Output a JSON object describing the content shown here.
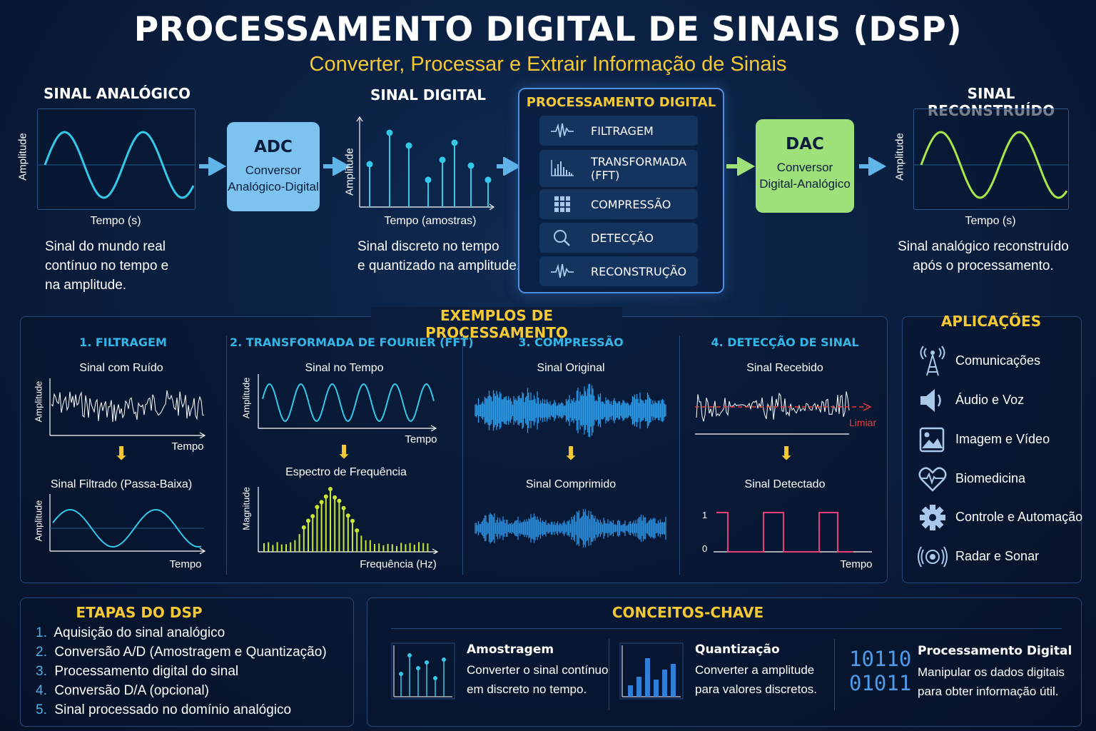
{
  "title": "PROCESSAMENTO DIGITAL DE SINAIS (DSP)",
  "subtitle": "Converter, Processar e Extrair Informação de Sinais",
  "colors": {
    "background": "#0a1d3c",
    "accent_yellow": "#f5c935",
    "accent_cyan": "#35b6e8",
    "adc_box": "#7cc3ef",
    "dac_box": "#9ee07a",
    "reconstructed_wave": "#a7e84a",
    "threshold_red": "#e83d3d",
    "detect_pink": "#e8407a"
  },
  "pipeline": {
    "analog": {
      "header": "SINAL ANALÓGICO",
      "ylabel": "Amplitude",
      "xlabel": "Tempo (s)",
      "description": [
        "Sinal do mundo real",
        "contínuo no tempo e",
        "na amplitude."
      ]
    },
    "adc": {
      "abbr": "ADC",
      "line1": "Conversor",
      "line2": "Analógico-Digital"
    },
    "digital": {
      "header": "SINAL DIGITAL",
      "ylabel": "Amplitude",
      "xlabel": "Tempo (amostras)",
      "description": [
        "Sinal discreto no tempo",
        "e quantizado na amplitude."
      ]
    },
    "processing": {
      "header": "PROCESSAMENTO DIGITAL",
      "items": [
        {
          "label": "FILTRAGEM",
          "icon": "waveform-icon"
        },
        {
          "label": "TRANSFORMADA\n(FFT)",
          "icon": "spectrum-bars-icon"
        },
        {
          "label": "COMPRESSÃO",
          "icon": "grid-icon"
        },
        {
          "label": "DETECÇÃO",
          "icon": "magnifier-icon"
        },
        {
          "label": "RECONSTRUÇÃO",
          "icon": "waveform-icon"
        }
      ]
    },
    "dac": {
      "abbr": "DAC",
      "line1": "Conversor",
      "line2": "Digital-Analógico"
    },
    "reconstructed": {
      "header": "SINAL RECONSTRUÍDO",
      "ylabel": "Amplitude",
      "xlabel": "Tempo (s)",
      "description": [
        "Sinal analógico reconstruído",
        "após o processamento."
      ]
    }
  },
  "examples": {
    "title": "EXEMPLOS DE PROCESSAMENTO",
    "filtering": {
      "title": "1. FILTRAGEM",
      "top_label": "Sinal com Ruído",
      "bottom_label": "Sinal Filtrado (Passa-Baixa)",
      "ylabel": "Amplitude",
      "xlabel": "Tempo"
    },
    "fft": {
      "title": "2. TRANSFORMADA DE FOURIER (FFT)",
      "top_label": "Sinal no Tempo",
      "bottom_label": "Espectro de Frequência",
      "ylabel_top": "Amplitude",
      "ylabel_bottom": "Magnitude",
      "xlabel_top": "Tempo",
      "xlabel_bottom": "Frequência (Hz)"
    },
    "compression": {
      "title": "3. COMPRESSÃO",
      "top_label": "Sinal Original",
      "bottom_label": "Sinal Comprimido"
    },
    "detection": {
      "title": "4. DETECÇÃO DE SINAL",
      "top_label": "Sinal Recebido",
      "threshold_label": "Limiar",
      "bottom_label": "Sinal Detectado",
      "tick_high": "1",
      "tick_low": "0",
      "xlabel": "Tempo"
    }
  },
  "applications": {
    "title": "APLICAÇÕES",
    "items": [
      {
        "label": "Comunicações",
        "icon": "antenna-tower-icon"
      },
      {
        "label": "Áudio e Voz",
        "icon": "speaker-icon"
      },
      {
        "label": "Imagem e Vídeo",
        "icon": "image-icon"
      },
      {
        "label": "Biomedicina",
        "icon": "heart-pulse-icon"
      },
      {
        "label": "Controle e Automação",
        "icon": "gear-icon"
      },
      {
        "label": "Radar e Sonar",
        "icon": "radar-icon"
      }
    ]
  },
  "steps": {
    "title": "ETAPAS DO DSP",
    "items": [
      {
        "num": "1.",
        "text": "Aquisição do sinal analógico"
      },
      {
        "num": "2.",
        "text": "Conversão A/D (Amostragem e Quantização)"
      },
      {
        "num": "3.",
        "text": "Processamento digital do sinal"
      },
      {
        "num": "4.",
        "text": "Conversão D/A (opcional)"
      },
      {
        "num": "5.",
        "text": "Sinal processado no domínio analógico"
      }
    ]
  },
  "concepts": {
    "title": "CONCEITOS-CHAVE",
    "items": [
      {
        "title": "Amostragem",
        "desc": [
          "Converter o sinal contínuo",
          "em discreto no tempo."
        ],
        "icon": "sampling-icon"
      },
      {
        "title": "Quantização",
        "desc": [
          "Converter a amplitude",
          "para valores discretos."
        ],
        "icon": "quantization-bars-icon"
      },
      {
        "title": "Processamento Digital",
        "desc": [
          "Manipular os dados digitais",
          "para obter informação útil."
        ],
        "binary": [
          "10110",
          "01011"
        ],
        "icon": "binary-icon"
      }
    ]
  }
}
